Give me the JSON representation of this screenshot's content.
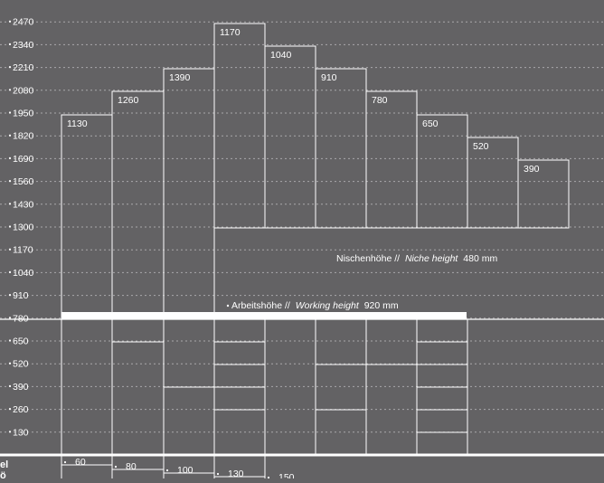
{
  "colors": {
    "background": "#636264",
    "line": "#ffffff",
    "grid": "#a9a8aa"
  },
  "y_scale_labels": [
    "2470",
    "2340",
    "2210",
    "2080",
    "1950",
    "1820",
    "1690",
    "1560",
    "1430",
    "1300",
    "1170",
    "1040",
    "910",
    "780",
    "650",
    "520",
    "390",
    "260",
    "130"
  ],
  "tall_units": [
    {
      "top_label": "1130"
    },
    {
      "top_label": "1260"
    },
    {
      "top_label": "1390"
    },
    {
      "top_label": "1170"
    },
    {
      "top_label": "1040"
    },
    {
      "top_label": "910"
    },
    {
      "top_label": "780"
    },
    {
      "top_label": "650"
    },
    {
      "top_label": "520"
    },
    {
      "top_label": "390"
    }
  ],
  "base_heights": [
    "60",
    "80",
    "100",
    "130",
    "150"
  ],
  "base_row_label_fragments": [
    "el",
    "ö"
  ],
  "niche_note": {
    "de": "Nischenhöhe //",
    "en": "Niche height",
    "value": "480 mm"
  },
  "working_note": {
    "de": "Arbeitshöhe //",
    "en": "Working height",
    "value": "920 mm"
  }
}
